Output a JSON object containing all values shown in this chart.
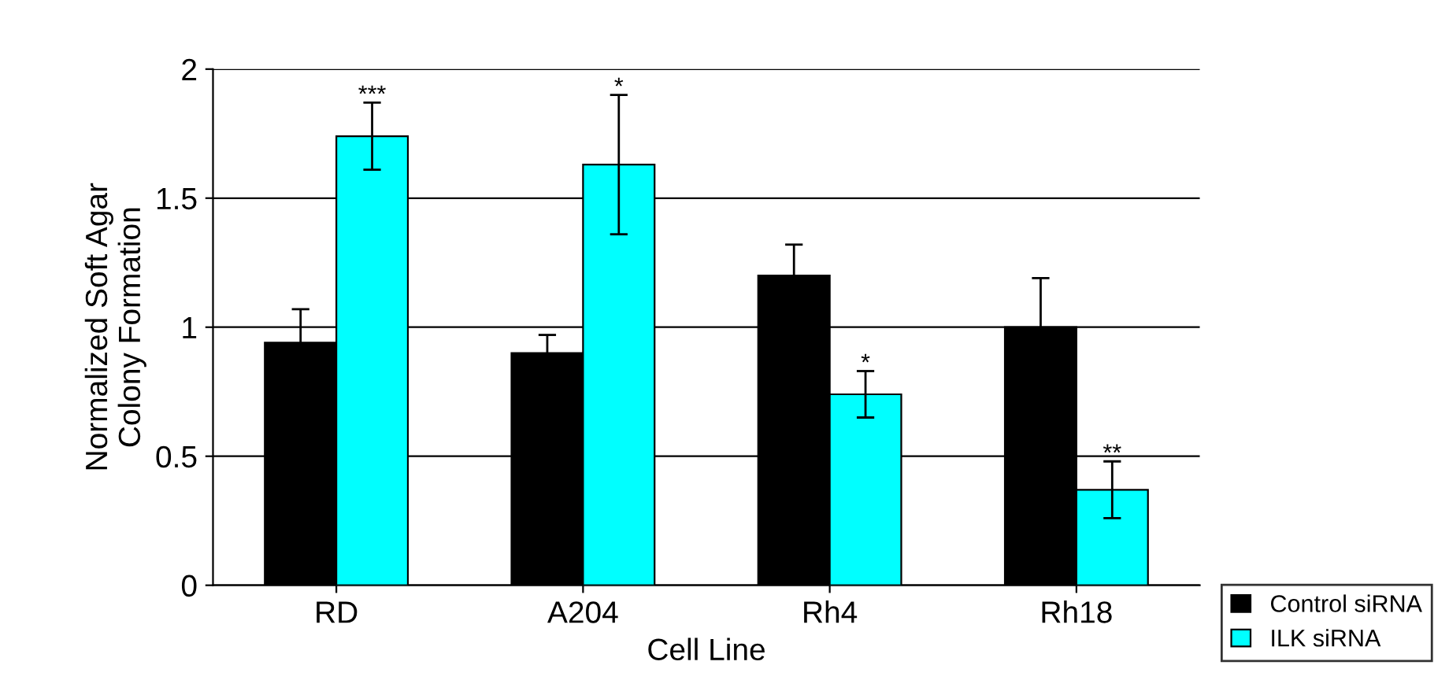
{
  "chart_data": {
    "type": "bar",
    "xlabel": "Cell Line",
    "ylabel": "Normalized Soft Agar\nColony Formation",
    "categories": [
      "RD",
      "A204",
      "Rh4",
      "Rh18"
    ],
    "series": [
      {
        "name": "Control siRNA",
        "color": "#000000",
        "values": [
          0.94,
          0.9,
          1.2,
          1.0
        ],
        "errors": [
          0.13,
          0.07,
          0.12,
          0.19
        ]
      },
      {
        "name": "ILK siRNA",
        "color": "#00ffff",
        "values": [
          1.74,
          1.63,
          0.74,
          0.37
        ],
        "errors": [
          0.13,
          0.27,
          0.09,
          0.11
        ]
      }
    ],
    "annotations": [
      "***",
      "*",
      "*",
      "**"
    ],
    "ylim": [
      0,
      2
    ],
    "yticks": [
      0,
      0.5,
      1,
      1.5,
      2
    ],
    "grid": "y",
    "legend": "bottom right"
  }
}
